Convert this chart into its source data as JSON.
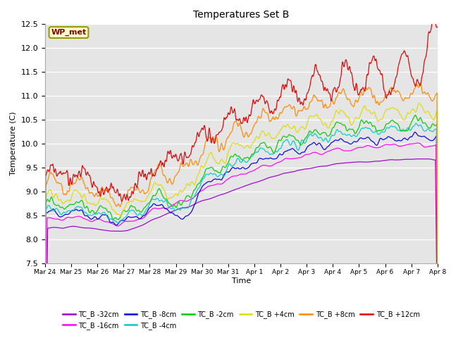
{
  "title": "Temperatures Set B",
  "xlabel": "Time",
  "ylabel": "Temperature (C)",
  "ylim": [
    7.5,
    12.5
  ],
  "series": [
    {
      "label": "TC_B -32cm",
      "color": "#9900cc"
    },
    {
      "label": "TC_B -16cm",
      "color": "#ff00ff"
    },
    {
      "label": "TC_B -8cm",
      "color": "#0000dd"
    },
    {
      "label": "TC_B -4cm",
      "color": "#00cccc"
    },
    {
      "label": "TC_B -2cm",
      "color": "#00cc00"
    },
    {
      "label": "TC_B +4cm",
      "color": "#dddd00"
    },
    {
      "label": "TC_B +8cm",
      "color": "#ff8800"
    },
    {
      "label": "TC_B +12cm",
      "color": "#dd0000"
    }
  ],
  "xtick_labels": [
    "Mar 24",
    "Mar 25",
    "Mar 26",
    "Mar 27",
    "Mar 28",
    "Mar 29",
    "Mar 30",
    "Mar 31",
    "Apr 1",
    "Apr 2",
    "Apr 3",
    "Apr 4",
    "Apr 5",
    "Apr 6",
    "Apr 7",
    "Apr 8"
  ],
  "ytick_labels": [
    "7.5",
    "8.0",
    "8.5",
    "9.0",
    "9.5",
    "10.0",
    "10.5",
    "11.0",
    "11.5",
    "12.0",
    "12.5"
  ],
  "wp_met_label": "WP_met",
  "legend_ncol": 6
}
